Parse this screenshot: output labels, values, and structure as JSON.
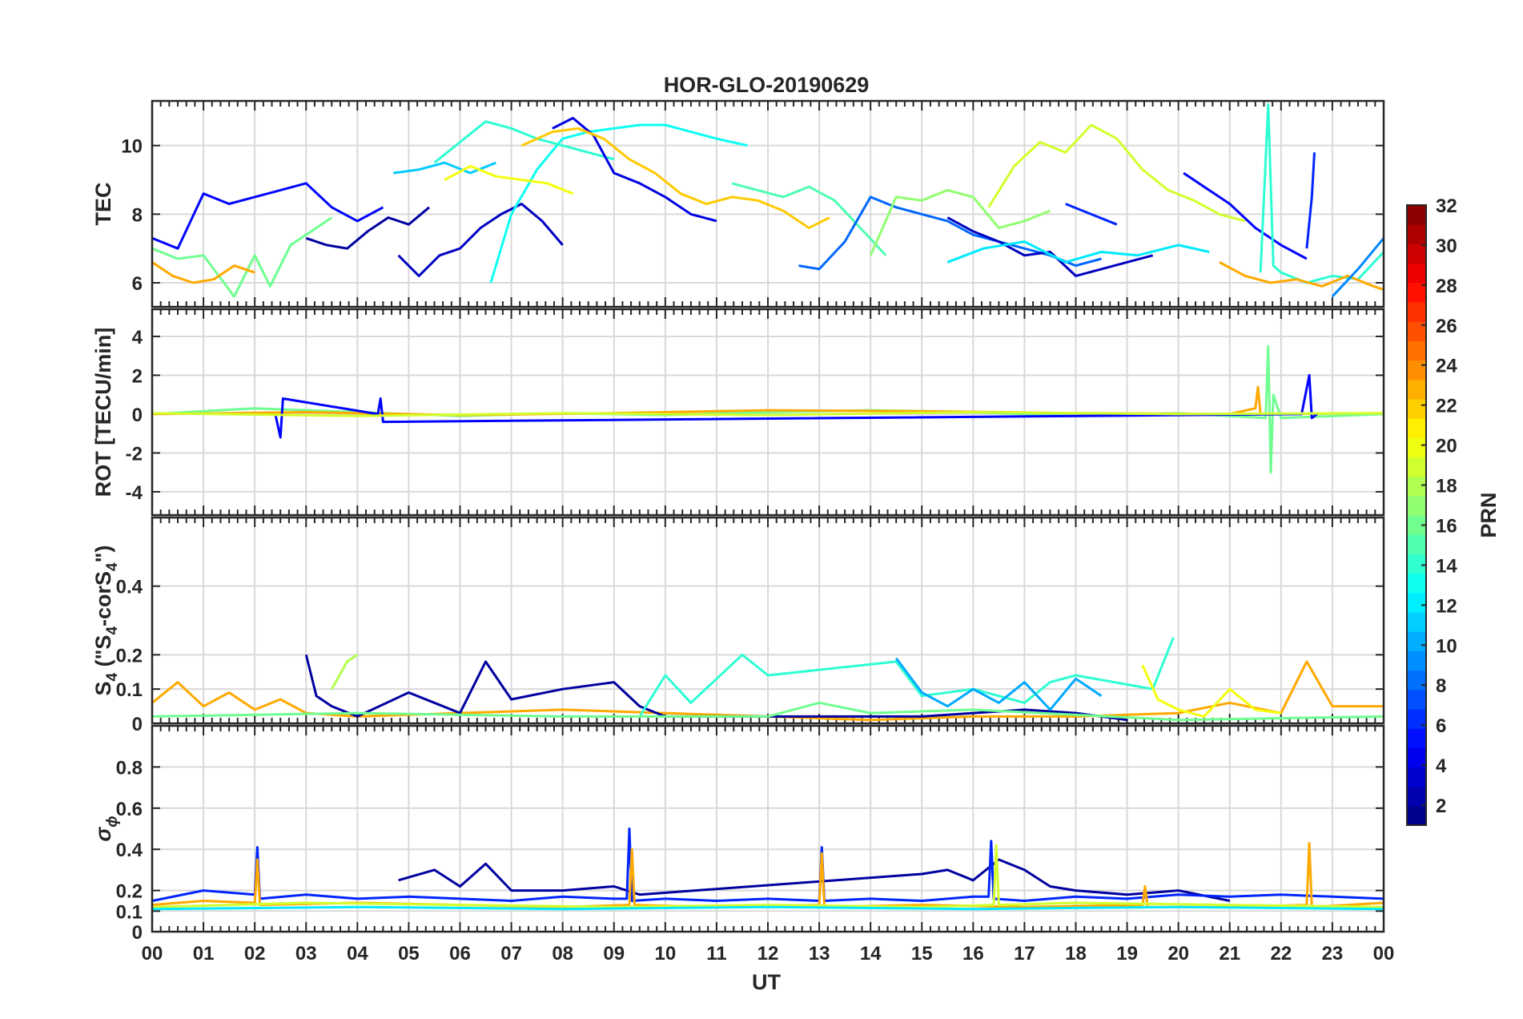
{
  "title": "HOR-GLO-20190629",
  "xlabel": "UT",
  "x_ticks": [
    "00",
    "01",
    "02",
    "03",
    "04",
    "05",
    "06",
    "07",
    "08",
    "09",
    "10",
    "11",
    "12",
    "13",
    "14",
    "15",
    "16",
    "17",
    "18",
    "19",
    "20",
    "21",
    "22",
    "23",
    "00"
  ],
  "panels": [
    {
      "id": "tec",
      "ylabel": "TEC",
      "ylim": [
        5.3,
        11.3
      ],
      "ticks": [
        6,
        8,
        10
      ],
      "tick_labels": [
        "6",
        "8",
        "10"
      ]
    },
    {
      "id": "rot",
      "ylabel": "ROT [TECU/min]",
      "ylim": [
        -5.2,
        5.4
      ],
      "ticks": [
        -4,
        -2,
        0,
        2,
        4
      ],
      "tick_labels": [
        "-4",
        "-2",
        "0",
        "2",
        "4"
      ]
    },
    {
      "id": "s4",
      "ylabel": "S",
      "ylabel_sub": "4",
      "ylabel_rest": " (\"S",
      "ylabel_sub2": "4",
      "ylabel_rest2": "-corS",
      "ylabel_sub3": "4",
      "ylabel_end": "\")",
      "ylim": [
        0,
        0.6
      ],
      "ticks": [
        0,
        0.1,
        0.2,
        0.4
      ],
      "tick_labels": [
        "0",
        "0.1",
        "0.2",
        "0.4"
      ]
    },
    {
      "id": "sigma",
      "ylabel": "σ",
      "ylabel_sub": "ϕ",
      "ylim": [
        0,
        1
      ],
      "ticks": [
        0,
        0.1,
        0.2,
        0.4,
        0.6,
        0.8
      ],
      "tick_labels": [
        "0",
        "0.1",
        "0.2",
        "0.4",
        "0.6",
        "0.8"
      ]
    }
  ],
  "colorbar": {
    "label": "PRN",
    "range": [
      1,
      32
    ],
    "ticks": [
      "2",
      "4",
      "6",
      "8",
      "10",
      "12",
      "14",
      "16",
      "18",
      "20",
      "22",
      "24",
      "26",
      "28",
      "30",
      "32"
    ],
    "colormap": "jet"
  },
  "chart_data": {
    "type": "line",
    "xlim": [
      0,
      24
    ],
    "xlabel": "UT",
    "color_by": "PRN",
    "series": [
      {
        "panel": "tec",
        "prn": 5,
        "x": [
          0,
          0.5,
          1,
          1.5,
          2,
          2.5,
          3,
          3.5,
          4,
          4.5
        ],
        "y": [
          7.3,
          7.0,
          8.6,
          8.3,
          8.5,
          8.7,
          8.9,
          8.2,
          7.8,
          8.2
        ]
      },
      {
        "panel": "tec",
        "prn": 16,
        "x": [
          0,
          0.5,
          1,
          1.3,
          1.6,
          2,
          2.3,
          2.7,
          3,
          3.5
        ],
        "y": [
          7.0,
          6.7,
          6.8,
          6.2,
          5.6,
          6.8,
          5.9,
          7.1,
          7.4,
          7.9
        ]
      },
      {
        "panel": "tec",
        "prn": 23,
        "x": [
          0,
          0.4,
          0.8,
          1.2,
          1.6,
          2.0
        ],
        "y": [
          6.6,
          6.2,
          6.0,
          6.1,
          6.5,
          6.3
        ]
      },
      {
        "panel": "tec",
        "prn": 2,
        "x": [
          3,
          3.4,
          3.8,
          4.2,
          4.6,
          5.0,
          5.4
        ],
        "y": [
          7.3,
          7.1,
          7.0,
          7.5,
          7.9,
          7.7,
          8.2
        ]
      },
      {
        "panel": "tec",
        "prn": 3,
        "x": [
          4.8,
          5.2,
          5.6,
          6.0,
          6.4,
          6.8,
          7.2,
          7.6,
          8.0
        ],
        "y": [
          6.8,
          6.2,
          6.8,
          7.0,
          7.6,
          8.0,
          8.3,
          7.8,
          7.1
        ]
      },
      {
        "panel": "tec",
        "prn": 11,
        "x": [
          4.7,
          5.2,
          5.7,
          6.2,
          6.7
        ],
        "y": [
          9.2,
          9.3,
          9.5,
          9.2,
          9.5
        ]
      },
      {
        "panel": "tec",
        "prn": 13,
        "x": [
          6.6,
          7.0,
          7.5,
          8.0,
          8.5,
          9.0,
          9.5,
          10.0,
          10.5,
          11.0,
          11.6
        ],
        "y": [
          6.0,
          8.0,
          9.3,
          10.2,
          10.4,
          10.5,
          10.6,
          10.6,
          10.4,
          10.2,
          10.0
        ]
      },
      {
        "panel": "tec",
        "prn": 14,
        "x": [
          5.5,
          6.0,
          6.5,
          7.0,
          7.5,
          8.0,
          8.5,
          9.0
        ],
        "y": [
          9.5,
          10.1,
          10.7,
          10.5,
          10.2,
          10.0,
          9.8,
          9.6
        ]
      },
      {
        "panel": "tec",
        "prn": 20,
        "x": [
          5.7,
          6.2,
          6.7,
          7.2,
          7.7,
          8.2
        ],
        "y": [
          9.0,
          9.4,
          9.1,
          9.0,
          8.9,
          8.6
        ]
      },
      {
        "panel": "tec",
        "prn": 4,
        "x": [
          7.8,
          8.2,
          8.6,
          9.0,
          9.5,
          10.0,
          10.5,
          11.0
        ],
        "y": [
          10.5,
          10.8,
          10.3,
          9.2,
          8.9,
          8.5,
          8.0,
          7.8
        ]
      },
      {
        "panel": "tec",
        "prn": 22,
        "x": [
          7.2,
          7.8,
          8.3,
          8.8,
          9.3,
          9.8,
          10.3,
          10.8,
          11.3,
          11.8,
          12.3,
          12.8,
          13.2
        ],
        "y": [
          10.0,
          10.4,
          10.5,
          10.2,
          9.6,
          9.2,
          8.6,
          8.3,
          8.5,
          8.4,
          8.1,
          7.6,
          7.9
        ]
      },
      {
        "panel": "tec",
        "prn": 15,
        "x": [
          11.3,
          11.8,
          12.3,
          12.8,
          13.3,
          13.8,
          14.3
        ],
        "y": [
          8.9,
          8.7,
          8.5,
          8.8,
          8.4,
          7.6,
          6.8
        ]
      },
      {
        "panel": "tec",
        "prn": 8,
        "x": [
          12.6,
          13.0,
          13.5,
          14.0,
          14.5,
          15.0,
          15.5,
          16.0,
          16.5,
          17.0,
          17.5,
          18.0,
          18.5
        ],
        "y": [
          6.5,
          6.4,
          7.2,
          8.5,
          8.2,
          8.0,
          7.8,
          7.4,
          7.2,
          7.0,
          6.8,
          6.5,
          6.7
        ]
      },
      {
        "panel": "tec",
        "prn": 17,
        "x": [
          14.0,
          14.5,
          15.0,
          15.5,
          16.0,
          16.5,
          17.0,
          17.5
        ],
        "y": [
          6.8,
          8.5,
          8.4,
          8.7,
          8.5,
          7.6,
          7.8,
          8.1
        ]
      },
      {
        "panel": "tec",
        "prn": 3,
        "x": [
          15.5,
          16.0,
          16.5,
          17.0,
          17.5,
          18.0,
          18.5,
          19.0,
          19.5
        ],
        "y": [
          7.9,
          7.5,
          7.2,
          6.8,
          6.9,
          6.2,
          6.4,
          6.6,
          6.8
        ]
      },
      {
        "panel": "tec",
        "prn": 19,
        "x": [
          16.3,
          16.8,
          17.3,
          17.8,
          18.3,
          18.8,
          19.3,
          19.8,
          20.3,
          20.8,
          21.3
        ],
        "y": [
          8.2,
          9.4,
          10.1,
          9.8,
          10.6,
          10.2,
          9.3,
          8.7,
          8.4,
          8.0,
          7.8
        ]
      },
      {
        "panel": "tec",
        "prn": 12,
        "x": [
          15.5,
          16.2,
          17.0,
          17.8,
          18.5,
          19.2,
          20.0,
          20.6
        ],
        "y": [
          6.6,
          7.0,
          7.2,
          6.6,
          6.9,
          6.8,
          7.1,
          6.9
        ]
      },
      {
        "panel": "tec",
        "prn": 6,
        "x": [
          17.8,
          18.3,
          18.8
        ],
        "y": [
          8.3,
          8.0,
          7.7
        ]
      },
      {
        "panel": "tec",
        "prn": 5,
        "x": [
          20.1,
          20.5,
          21.0,
          21.5,
          22.0,
          22.5
        ],
        "y": [
          9.2,
          8.8,
          8.3,
          7.6,
          7.1,
          6.7
        ]
      },
      {
        "panel": "tec",
        "prn": 14,
        "x": [
          21.6,
          21.75,
          21.85,
          22.0,
          22.5,
          23.0,
          23.5,
          24.0
        ],
        "y": [
          6.3,
          11.2,
          6.5,
          6.3,
          6.0,
          6.2,
          6.1,
          6.9
        ]
      },
      {
        "panel": "tec",
        "prn": 23,
        "x": [
          20.8,
          21.3,
          21.8,
          22.3,
          22.8,
          23.3,
          23.8,
          24.0
        ],
        "y": [
          6.6,
          6.2,
          6.0,
          6.1,
          5.9,
          6.2,
          5.9,
          5.8
        ]
      },
      {
        "panel": "tec",
        "prn": 6,
        "x": [
          22.5,
          22.6,
          22.65
        ],
        "y": [
          7.0,
          8.5,
          9.8
        ]
      },
      {
        "panel": "tec",
        "prn": 9,
        "x": [
          23.0,
          23.5,
          24.0
        ],
        "y": [
          5.6,
          6.4,
          7.3
        ]
      },
      {
        "panel": "rot",
        "prn": 16,
        "x": [
          0,
          2,
          4,
          6,
          8,
          10,
          12,
          14,
          16,
          18,
          20,
          21.7,
          21.75,
          21.8,
          21.85,
          22,
          24
        ],
        "y": [
          0,
          0.3,
          0.1,
          -0.1,
          0.05,
          -0.05,
          0.1,
          0.2,
          0.1,
          -0.1,
          0.05,
          -0.2,
          3.5,
          -3.0,
          1.0,
          -0.2,
          0
        ]
      },
      {
        "panel": "rot",
        "prn": 23,
        "x": [
          0,
          3,
          6,
          9,
          12,
          15,
          18,
          21,
          21.5,
          21.55,
          21.6,
          24
        ],
        "y": [
          0,
          0.1,
          -0.05,
          0.05,
          0.2,
          0.15,
          0.05,
          0,
          0.3,
          1.4,
          0,
          0.05
        ]
      },
      {
        "panel": "rot",
        "prn": 5,
        "x": [
          2.4,
          2.5,
          2.55,
          4.4,
          4.45,
          4.5,
          22.4,
          22.55,
          22.6,
          22.7
        ],
        "y": [
          0,
          -1.2,
          0.8,
          0,
          0.8,
          -0.4,
          0,
          2.0,
          -0.2,
          0
        ]
      },
      {
        "panel": "rot",
        "prn": 19,
        "x": [
          0,
          4,
          8,
          12,
          16,
          20,
          24
        ],
        "y": [
          0.05,
          -0.1,
          0.05,
          -0.05,
          0.1,
          0.0,
          0.05
        ]
      },
      {
        "panel": "s4",
        "prn": 23,
        "x": [
          0,
          0.5,
          1.0,
          1.5,
          2.0,
          2.5,
          3.0,
          4,
          6,
          8,
          10,
          12,
          14,
          16,
          18,
          20,
          21,
          22,
          22.5,
          23,
          24
        ],
        "y": [
          0.06,
          0.12,
          0.05,
          0.09,
          0.04,
          0.07,
          0.03,
          0.02,
          0.03,
          0.04,
          0.03,
          0.02,
          0.01,
          0.02,
          0.02,
          0.03,
          0.06,
          0.03,
          0.18,
          0.05,
          0.05
        ]
      },
      {
        "panel": "s4",
        "prn": 2,
        "x": [
          3.0,
          3.2,
          3.5,
          4.0,
          5.0,
          5.5,
          6.0,
          6.5,
          7.0,
          8.0,
          9.0,
          9.5,
          10,
          13,
          15,
          17,
          18,
          19
        ],
        "y": [
          0.2,
          0.08,
          0.05,
          0.02,
          0.09,
          0.06,
          0.03,
          0.18,
          0.07,
          0.1,
          0.12,
          0.05,
          0.02,
          0.02,
          0.02,
          0.04,
          0.03,
          0.01
        ]
      },
      {
        "panel": "s4",
        "prn": 18,
        "x": [
          3.5,
          3.8,
          4.0
        ],
        "y": [
          0.1,
          0.18,
          0.2
        ]
      },
      {
        "panel": "s4",
        "prn": 14,
        "x": [
          9.5,
          10.0,
          10.5,
          11.5,
          12.0,
          14.5,
          15.0,
          16.0,
          17.0,
          17.5,
          18.0,
          19.5,
          19.9
        ],
        "y": [
          0.02,
          0.14,
          0.06,
          0.2,
          0.14,
          0.18,
          0.08,
          0.1,
          0.06,
          0.12,
          0.14,
          0.1,
          0.25
        ]
      },
      {
        "panel": "s4",
        "prn": 10,
        "x": [
          14.5,
          15.0,
          15.5,
          16.0,
          16.5,
          17.0,
          17.5,
          18.0,
          18.5
        ],
        "y": [
          0.19,
          0.09,
          0.05,
          0.1,
          0.06,
          0.12,
          0.04,
          0.13,
          0.08
        ]
      },
      {
        "panel": "s4",
        "prn": 20,
        "x": [
          19.3,
          19.6,
          20.0,
          20.5,
          21.0,
          21.5,
          22.0
        ],
        "y": [
          0.17,
          0.07,
          0.04,
          0.02,
          0.1,
          0.04,
          0.03
        ]
      },
      {
        "panel": "s4",
        "prn": 16,
        "x": [
          0,
          4,
          8,
          12,
          13,
          14,
          16,
          20,
          24
        ],
        "y": [
          0.02,
          0.03,
          0.02,
          0.02,
          0.06,
          0.03,
          0.04,
          0.01,
          0.02
        ]
      },
      {
        "panel": "sigma",
        "prn": 2,
        "x": [
          4.8,
          5.5,
          6.0,
          6.5,
          7.0,
          8.0,
          9.0,
          9.5,
          15.0,
          15.5,
          16.0,
          16.5,
          17.0,
          17.5,
          18.0,
          19,
          20,
          21
        ],
        "y": [
          0.25,
          0.3,
          0.22,
          0.33,
          0.2,
          0.2,
          0.22,
          0.18,
          0.28,
          0.3,
          0.25,
          0.35,
          0.3,
          0.22,
          0.2,
          0.18,
          0.2,
          0.15
        ]
      },
      {
        "panel": "sigma",
        "prn": 6,
        "x": [
          0,
          1,
          2,
          2.05,
          2.1,
          3,
          4,
          5,
          6,
          7,
          8,
          9,
          9.25,
          9.3,
          9.35,
          10,
          11,
          12,
          13,
          13.05,
          13.1,
          14,
          15,
          16,
          16.3,
          16.35,
          16.4,
          17,
          18,
          19,
          20,
          21,
          22,
          23,
          24
        ],
        "y": [
          0.15,
          0.2,
          0.18,
          0.41,
          0.16,
          0.18,
          0.16,
          0.17,
          0.16,
          0.15,
          0.17,
          0.16,
          0.16,
          0.5,
          0.15,
          0.16,
          0.15,
          0.16,
          0.15,
          0.41,
          0.15,
          0.16,
          0.15,
          0.17,
          0.17,
          0.44,
          0.16,
          0.15,
          0.17,
          0.16,
          0.18,
          0.17,
          0.18,
          0.17,
          0.16
        ]
      },
      {
        "panel": "sigma",
        "prn": 23,
        "x": [
          0,
          1,
          2,
          2.05,
          2.1,
          4,
          6,
          8,
          9.3,
          9.35,
          9.4,
          11,
          13.0,
          13.05,
          13.1,
          15,
          17,
          19.3,
          19.35,
          19.4,
          21,
          22.5,
          22.55,
          22.6,
          24
        ],
        "y": [
          0.13,
          0.15,
          0.14,
          0.35,
          0.13,
          0.14,
          0.13,
          0.12,
          0.13,
          0.4,
          0.13,
          0.12,
          0.13,
          0.38,
          0.12,
          0.13,
          0.12,
          0.13,
          0.22,
          0.12,
          0.12,
          0.13,
          0.43,
          0.12,
          0.14
        ]
      },
      {
        "panel": "sigma",
        "prn": 19,
        "x": [
          0,
          3,
          6,
          9,
          12,
          15,
          16.4,
          16.45,
          16.5,
          18,
          21,
          24
        ],
        "y": [
          0.12,
          0.14,
          0.13,
          0.12,
          0.13,
          0.12,
          0.13,
          0.42,
          0.13,
          0.14,
          0.13,
          0.12
        ]
      },
      {
        "panel": "sigma",
        "prn": 12,
        "x": [
          0,
          4,
          8,
          12,
          16,
          20,
          24
        ],
        "y": [
          0.11,
          0.12,
          0.11,
          0.12,
          0.11,
          0.12,
          0.11
        ]
      }
    ]
  }
}
